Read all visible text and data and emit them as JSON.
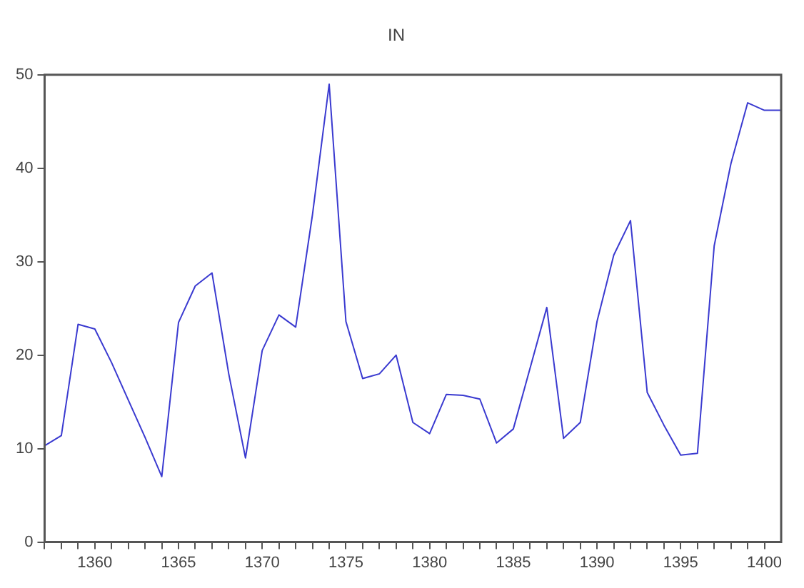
{
  "chart_data": {
    "type": "line",
    "title": "IN",
    "x": [
      1357,
      1358,
      1359,
      1360,
      1361,
      1362,
      1363,
      1364,
      1365,
      1366,
      1367,
      1368,
      1369,
      1370,
      1371,
      1372,
      1373,
      1374,
      1375,
      1376,
      1377,
      1378,
      1379,
      1380,
      1381,
      1382,
      1383,
      1384,
      1385,
      1386,
      1387,
      1388,
      1389,
      1390,
      1391,
      1392,
      1393,
      1394,
      1395,
      1396,
      1397,
      1398,
      1399,
      1400,
      1401
    ],
    "series": [
      {
        "color": "#3a3ad0",
        "values": [
          10.3,
          11.4,
          23.3,
          22.8,
          19.2,
          15.2,
          11.2,
          7,
          23.5,
          27.4,
          28.8,
          18,
          9,
          20.5,
          24.3,
          23,
          35,
          49,
          23.6,
          17.5,
          18,
          20,
          12.8,
          11.6,
          15.8,
          15.7,
          15.3,
          10.6,
          12.1,
          18.6,
          25.1,
          11.1,
          12.8,
          23.6,
          30.7,
          34.4,
          16,
          12.5,
          9.3,
          9.5,
          31.7,
          40.5,
          47,
          46.2,
          46.2
        ]
      }
    ],
    "xlim": [
      1357,
      1401
    ],
    "xticks": [
      {
        "value": 1357,
        "label": null
      },
      {
        "value": 1358,
        "label": null
      },
      {
        "value": 1359,
        "label": null
      },
      1360,
      {
        "value": 1361,
        "label": null
      },
      {
        "value": 1362,
        "label": null
      },
      {
        "value": 1363,
        "label": null
      },
      {
        "value": 1364,
        "label": null
      },
      1365,
      {
        "value": 1366,
        "label": null
      },
      {
        "value": 1367,
        "label": null
      },
      {
        "value": 1368,
        "label": null
      },
      {
        "value": 1369,
        "label": null
      },
      1370,
      {
        "value": 1371,
        "label": null
      },
      {
        "value": 1372,
        "label": null
      },
      {
        "value": 1373,
        "label": null
      },
      {
        "value": 1374,
        "label": null
      },
      1375,
      {
        "value": 1376,
        "label": null
      },
      {
        "value": 1377,
        "label": null
      },
      {
        "value": 1378,
        "label": null
      },
      {
        "value": 1379,
        "label": null
      },
      1380,
      {
        "value": 1381,
        "label": null
      },
      {
        "value": 1382,
        "label": null
      },
      {
        "value": 1383,
        "label": null
      },
      {
        "value": 1384,
        "label": null
      },
      1385,
      {
        "value": 1386,
        "label": null
      },
      {
        "value": 1387,
        "label": null
      },
      {
        "value": 1388,
        "label": null
      },
      {
        "value": 1389,
        "label": null
      },
      1390,
      {
        "value": 1391,
        "label": null
      },
      {
        "value": 1392,
        "label": null
      },
      {
        "value": 1393,
        "label": null
      },
      {
        "value": 1394,
        "label": null
      },
      1395,
      {
        "value": 1396,
        "label": null
      },
      {
        "value": 1397,
        "label": null
      },
      {
        "value": 1398,
        "label": null
      },
      {
        "value": 1399,
        "label": null
      },
      1400
    ],
    "ylim": [
      0,
      50
    ],
    "yticks": [
      0,
      10,
      20,
      30,
      40,
      50
    ],
    "grid": false,
    "legend": false,
    "marker": "none",
    "line_style": "solid"
  }
}
